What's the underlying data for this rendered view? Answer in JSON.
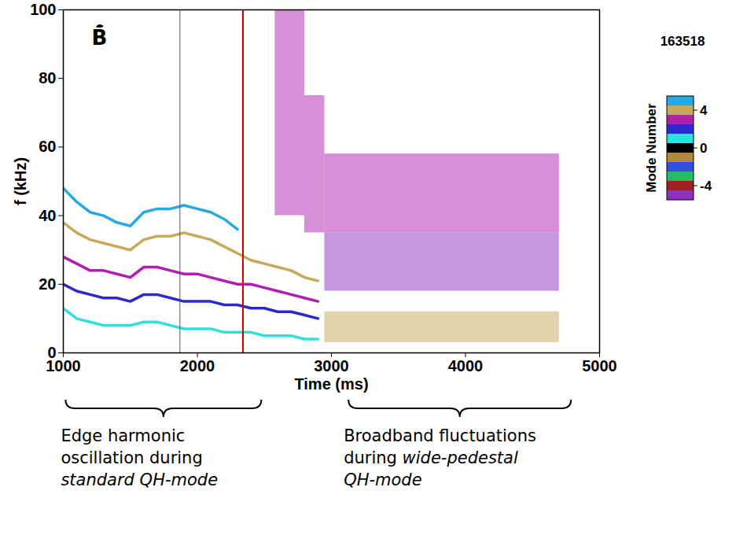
{
  "chart_data": {
    "type": "line",
    "signal_label": "B̃̇",
    "shot_label": "163518",
    "x_label": "Time (ms)",
    "y_label": "f (kHz)",
    "xlim": [
      1000,
      5000
    ],
    "xticks": [
      1000,
      2000,
      3000,
      4000,
      5000
    ],
    "ylim": [
      0,
      100
    ],
    "yticks": [
      0,
      20,
      40,
      60,
      80,
      100
    ],
    "x": [
      1000,
      1100,
      1200,
      1300,
      1400,
      1500,
      1600,
      1700,
      1800,
      1900,
      2000,
      2100,
      2200,
      2300,
      2400,
      2500,
      2600,
      2700,
      2800,
      2900
    ],
    "series": [
      {
        "mode": 1,
        "values": [
          13,
          10,
          9,
          8,
          8,
          8,
          9,
          9,
          8,
          7,
          7,
          7,
          6,
          6,
          6,
          5,
          5,
          5,
          4,
          4
        ]
      },
      {
        "mode": 2,
        "values": [
          20,
          18,
          17,
          16,
          16,
          15,
          17,
          17,
          16,
          15,
          15,
          15,
          14,
          14,
          13,
          13,
          12,
          12,
          11,
          10
        ]
      },
      {
        "mode": 3,
        "values": [
          28,
          26,
          24,
          24,
          23,
          22,
          25,
          25,
          24,
          23,
          23,
          22,
          21,
          20,
          20,
          19,
          18,
          17,
          16,
          15
        ]
      },
      {
        "mode": 4,
        "values": [
          38,
          35,
          33,
          32,
          31,
          30,
          33,
          34,
          34,
          35,
          34,
          33,
          31,
          29,
          27,
          26,
          25,
          24,
          22,
          21
        ]
      },
      {
        "mode": 5,
        "values": [
          48,
          44,
          41,
          40,
          38,
          37,
          41,
          42,
          42,
          43,
          42,
          41,
          39,
          36,
          null,
          null,
          null,
          null,
          null,
          null
        ]
      }
    ],
    "broadband": [
      {
        "t0": 2580,
        "t1": 2800,
        "f0": 40,
        "f1": 100,
        "mode": 3
      },
      {
        "t0": 2800,
        "t1": 2950,
        "f0": 35,
        "f1": 75,
        "mode": 3
      },
      {
        "t0": 2950,
        "t1": 4700,
        "f0": 35,
        "f1": 58,
        "mode": 3
      },
      {
        "t0": 2950,
        "t1": 4700,
        "f0": 18,
        "f1": 35,
        "mode": -5
      },
      {
        "t0": 2950,
        "t1": 4700,
        "f0": 3,
        "f1": 12,
        "mode": 4
      }
    ],
    "vlines": [
      {
        "x": 1870,
        "color": "#555555"
      },
      {
        "x": 2340,
        "color": "#cc0000"
      }
    ],
    "colorbar": {
      "title": "Mode Number",
      "modes": [
        5,
        4,
        3,
        2,
        1,
        0,
        -1,
        -2,
        -3,
        -4,
        -5
      ],
      "colors": [
        "#2aa8e0",
        "#c8a85a",
        "#b01fb0",
        "#2a2ad0",
        "#30e0e0",
        "#000000",
        "#b08840",
        "#3050e0",
        "#20c060",
        "#a02020",
        "#9030c0"
      ],
      "ticks": [
        4,
        0,
        -4
      ]
    },
    "annotations": [
      {
        "x_range": [
          1020,
          2480
        ],
        "lines": [
          "Edge harmonic",
          "oscillation during",
          "standard QH-mode"
        ],
        "emphasis": "standard QH-mode"
      },
      {
        "x_range": [
          3130,
          4790
        ],
        "lines": [
          "Broadband fluctuations",
          "during wide-pedestal",
          "QH-mode"
        ],
        "emphasis": "wide-pedestal QH-mode"
      }
    ]
  }
}
